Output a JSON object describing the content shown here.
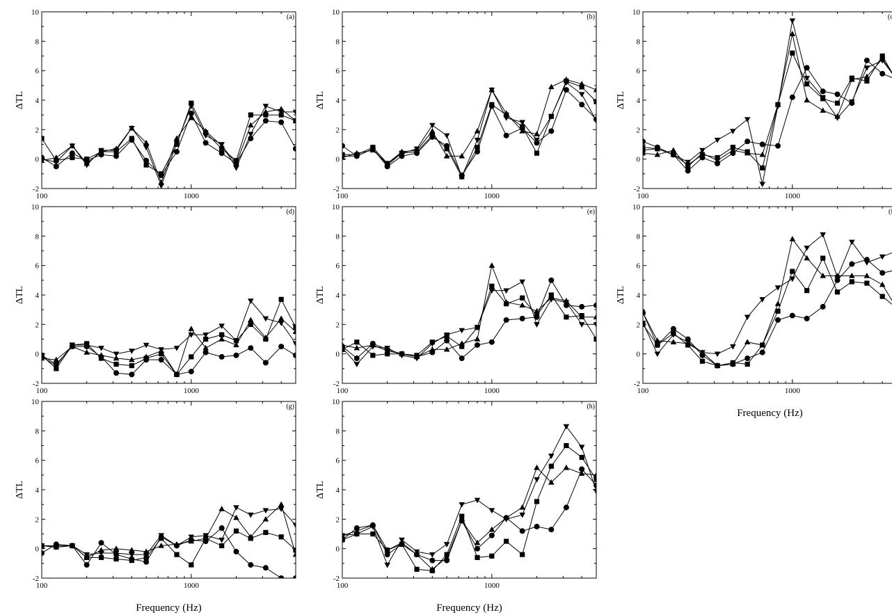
{
  "chart_data": {
    "type": "line",
    "x": [
      100,
      125,
      160,
      200,
      250,
      315,
      400,
      500,
      630,
      800,
      1000,
      1250,
      1600,
      2000,
      2500,
      3150,
      4000,
      5000
    ],
    "x_scale": "log",
    "xlim": [
      100,
      5000
    ],
    "ylim": [
      -2,
      10
    ],
    "y_ticks": [
      "-2",
      "0",
      "2",
      "4",
      "6",
      "8",
      "10"
    ],
    "x_ticks": [
      "100",
      "1000"
    ],
    "xlabel": "Frequency (Hz)",
    "ylabel": "ΔTL",
    "markers": [
      "square",
      "circle",
      "triangle-up",
      "triangle-down"
    ],
    "panels": [
      {
        "label": "(a)",
        "show_xlabel": false,
        "series": [
          {
            "marker": "square",
            "values": [
              1.4,
              -0.1,
              0.1,
              0,
              0.5,
              0.5,
              1.4,
              -0.4,
              -1.0,
              1.0,
              3.8,
              1.8,
              0.7,
              -0.1,
              3.0,
              3.0,
              3.0,
              2.6
            ]
          },
          {
            "marker": "circle",
            "values": [
              0.1,
              -0.5,
              0.4,
              -0.1,
              0.3,
              0.2,
              1.3,
              -0.1,
              -1.1,
              0.5,
              3.1,
              1.1,
              0.4,
              -0.3,
              1.4,
              2.6,
              2.5,
              0.7
            ]
          },
          {
            "marker": "triangle-up",
            "values": [
              -0.1,
              0.1,
              0.9,
              -0.3,
              0.5,
              0.7,
              2.1,
              1.1,
              -1.6,
              1.4,
              2.8,
              1.9,
              0.9,
              -0.3,
              2.3,
              3.2,
              3.4,
              2.6
            ]
          },
          {
            "marker": "triangle-down",
            "values": [
              0,
              -0.2,
              0.9,
              -0.4,
              0.6,
              0.6,
              2.1,
              0.8,
              -1.8,
              1.1,
              3.6,
              1.6,
              1.0,
              -0.6,
              1.7,
              3.6,
              3.2,
              3.2
            ]
          }
        ]
      },
      {
        "label": "(b)",
        "show_xlabel": false,
        "series": [
          {
            "marker": "square",
            "values": [
              0.3,
              0.3,
              0.8,
              -0.3,
              0.4,
              0.5,
              1.6,
              0.7,
              -1.2,
              0.8,
              3.7,
              3.0,
              2.2,
              0.4,
              2.9,
              5.3,
              4.9,
              3.9
            ]
          },
          {
            "marker": "circle",
            "values": [
              0.9,
              0.2,
              0.7,
              -0.5,
              0.2,
              0.4,
              1.5,
              0.9,
              -1.1,
              0.5,
              3.6,
              1.6,
              2.1,
              1.1,
              1.9,
              4.7,
              3.7,
              2.7
            ]
          },
          {
            "marker": "triangle-up",
            "values": [
              0.1,
              0.4,
              0.6,
              -0.3,
              0.5,
              0.6,
              1.9,
              0.2,
              0.2,
              1.9,
              4.7,
              3.1,
              1.9,
              1.7,
              4.9,
              5.4,
              5.1,
              4.7
            ]
          },
          {
            "marker": "triangle-down",
            "values": [
              0.2,
              0.2,
              0.7,
              -0.4,
              0.4,
              0.7,
              2.3,
              1.6,
              -1.2,
              1.3,
              4.7,
              2.8,
              2.5,
              1.3,
              2.9,
              5.2,
              4.4,
              2.6
            ]
          }
        ]
      },
      {
        "label": "(c)",
        "show_xlabel": false,
        "series": [
          {
            "marker": "square",
            "values": [
              0.6,
              0.7,
              0.3,
              -0.4,
              0.3,
              0.1,
              0.8,
              0.5,
              -0.6,
              3.7,
              7.2,
              5.1,
              4.1,
              3.8,
              5.5,
              5.3,
              7.0,
              5.3
            ]
          },
          {
            "marker": "circle",
            "values": [
              1.2,
              0.8,
              0.3,
              -0.8,
              0.1,
              -0.3,
              0.4,
              1.2,
              1.0,
              0.9,
              4.2,
              6.2,
              4.6,
              4.4,
              3.8,
              6.7,
              5.8,
              5.4
            ]
          },
          {
            "marker": "triangle-up",
            "values": [
              0.4,
              0.3,
              0.6,
              -0.5,
              0.4,
              -0.1,
              0.6,
              0.4,
              0.3,
              3.7,
              8.5,
              4.0,
              3.3,
              2.9,
              5.4,
              5.6,
              6.8,
              5.4
            ]
          },
          {
            "marker": "triangle-down",
            "values": [
              0.8,
              0.7,
              0.3,
              -0.2,
              0.6,
              1.3,
              1.9,
              2.7,
              -1.7,
              3.6,
              9.4,
              5.5,
              4.2,
              2.8,
              3.9,
              6.2,
              6.7,
              5.4
            ]
          }
        ]
      },
      {
        "label": "(d)",
        "show_xlabel": false,
        "series": [
          {
            "marker": "square",
            "values": [
              -0.1,
              -1.0,
              0.6,
              0.7,
              -0.3,
              -0.7,
              -0.8,
              -0.3,
              0.0,
              -1.4,
              -0.2,
              1.0,
              1.3,
              0.9,
              2.0,
              1.0,
              3.7,
              1.8
            ]
          },
          {
            "marker": "circle",
            "values": [
              -0.1,
              -0.7,
              0.5,
              0.5,
              -0.2,
              -1.3,
              -1.4,
              -0.4,
              -0.4,
              -1.4,
              -1.2,
              0.1,
              -0.2,
              -0.1,
              0.4,
              -0.6,
              0.5,
              -0.1
            ]
          },
          {
            "marker": "triangle-up",
            "values": [
              -0.3,
              -0.4,
              0.5,
              0.1,
              -0.1,
              -0.3,
              -0.4,
              -0.2,
              0.2,
              -1.4,
              1.7,
              0.4,
              1.0,
              0.6,
              2.3,
              1.1,
              2.4,
              1.5
            ]
          },
          {
            "marker": "triangle-down",
            "values": [
              -0.2,
              -0.8,
              0.6,
              0.6,
              0.4,
              0.0,
              0.2,
              0.6,
              0.3,
              0.4,
              1.3,
              1.3,
              1.9,
              0.9,
              3.6,
              2.4,
              2.1,
              0.7
            ]
          }
        ]
      },
      {
        "label": "(e)",
        "show_xlabel": false,
        "series": [
          {
            "marker": "square",
            "values": [
              0.3,
              0.8,
              -0.1,
              0.0,
              0.0,
              -0.1,
              0.8,
              1.2,
              0.5,
              1.8,
              4.6,
              3.4,
              3.8,
              2.6,
              4.0,
              2.5,
              2.6,
              1.0
            ]
          },
          {
            "marker": "circle",
            "values": [
              0.5,
              -0.3,
              0.7,
              0.3,
              0.0,
              -0.2,
              0.1,
              0.9,
              -0.3,
              0.6,
              0.8,
              2.3,
              2.4,
              2.5,
              5.0,
              3.3,
              3.2,
              3.3
            ]
          },
          {
            "marker": "triangle-up",
            "values": [
              0.6,
              0.4,
              0.6,
              0.2,
              0.0,
              -0.2,
              0.3,
              0.3,
              0.7,
              1.0,
              6.0,
              3.5,
              3.3,
              2.9,
              3.8,
              3.6,
              2.5,
              2.5
            ]
          },
          {
            "marker": "triangle-down",
            "values": [
              0.4,
              -0.7,
              0.5,
              0.4,
              -0.1,
              -0.3,
              0.7,
              1.3,
              1.6,
              1.8,
              4.3,
              4.3,
              4.9,
              2.0,
              3.7,
              3.5,
              2.0,
              2.0
            ]
          }
        ]
      },
      {
        "label": "(f)",
        "show_xlabel": true,
        "series": [
          {
            "marker": "square",
            "values": [
              2.0,
              0.6,
              1.4,
              0.6,
              -0.5,
              -0.8,
              -0.6,
              -0.7,
              0.6,
              2.9,
              5.6,
              4.3,
              6.5,
              4.2,
              4.9,
              4.8,
              3.9,
              3.1
            ]
          },
          {
            "marker": "circle",
            "values": [
              2.8,
              0.6,
              1.7,
              1.0,
              -0.1,
              -0.8,
              -0.7,
              -0.3,
              0.1,
              2.3,
              2.6,
              2.4,
              3.2,
              5.0,
              6.1,
              6.4,
              5.5,
              5.7
            ]
          },
          {
            "marker": "triangle-up",
            "values": [
              2.8,
              0.9,
              0.8,
              0.7,
              0.1,
              -0.8,
              -0.7,
              0.8,
              0.6,
              3.4,
              7.8,
              6.5,
              5.3,
              5.3,
              5.3,
              5.3,
              4.7,
              3.1
            ]
          },
          {
            "marker": "triangle-down",
            "values": [
              2.1,
              0.0,
              1.3,
              0.8,
              0.1,
              0.0,
              0.5,
              2.5,
              3.7,
              4.5,
              5.1,
              7.2,
              8.1,
              5.2,
              7.6,
              6.2,
              6.6,
              7.0
            ]
          }
        ]
      },
      {
        "label": "(g)",
        "show_xlabel": true,
        "series": [
          {
            "marker": "square",
            "values": [
              0.2,
              0.2,
              0.2,
              -0.6,
              -0.6,
              -0.7,
              -0.8,
              -0.6,
              0.7,
              -0.4,
              -1.1,
              0.7,
              0.2,
              1.2,
              0.7,
              1.1,
              0.8,
              -0.1
            ]
          },
          {
            "marker": "circle",
            "values": [
              -0.3,
              0.3,
              0.2,
              -1.1,
              0.4,
              -0.4,
              -0.7,
              -0.9,
              0.8,
              0.2,
              0.6,
              0.5,
              1.4,
              -0.2,
              -1.1,
              -1.3,
              -2.0,
              -2.0
            ]
          },
          {
            "marker": "triangle-up",
            "values": [
              0.2,
              0.1,
              0.2,
              -0.6,
              -0.1,
              0.0,
              -0.1,
              -0.2,
              0.2,
              0.3,
              0.5,
              0.7,
              2.7,
              2.1,
              0.8,
              2.0,
              3.0,
              -0.4
            ]
          },
          {
            "marker": "triangle-down",
            "values": [
              0.2,
              0.1,
              0.2,
              -0.4,
              -0.3,
              -0.3,
              -0.4,
              -0.4,
              0.9,
              0.2,
              0.8,
              0.9,
              0.6,
              2.8,
              2.3,
              2.6,
              2.7,
              1.6
            ]
          }
        ]
      },
      {
        "label": "(h)",
        "show_xlabel": true,
        "series": [
          {
            "marker": "square",
            "values": [
              0.6,
              1.0,
              1.0,
              -0.1,
              0.3,
              -1.4,
              -1.5,
              -0.4,
              2.2,
              -0.6,
              -0.5,
              0.5,
              -0.4,
              3.2,
              5.6,
              7.0,
              6.2,
              4.7
            ]
          },
          {
            "marker": "circle",
            "values": [
              0.6,
              1.4,
              1.6,
              -0.4,
              0.3,
              -0.4,
              -0.8,
              -0.8,
              1.9,
              0.0,
              0.9,
              2.1,
              1.2,
              1.5,
              1.3,
              2.8,
              5.4,
              4.3
            ]
          },
          {
            "marker": "triangle-up",
            "values": [
              0.9,
              1.2,
              1.6,
              -0.1,
              0.4,
              -0.4,
              -1.4,
              -0.6,
              1.9,
              0.4,
              1.3,
              2.1,
              2.8,
              5.5,
              4.5,
              5.5,
              5.1,
              5.0
            ]
          },
          {
            "marker": "triangle-down",
            "values": [
              0.9,
              1.0,
              1.5,
              -1.1,
              0.6,
              -0.2,
              -0.4,
              0.3,
              3.0,
              3.3,
              2.6,
              2.0,
              2.3,
              4.7,
              6.3,
              8.3,
              6.9,
              3.9
            ]
          }
        ]
      }
    ]
  }
}
